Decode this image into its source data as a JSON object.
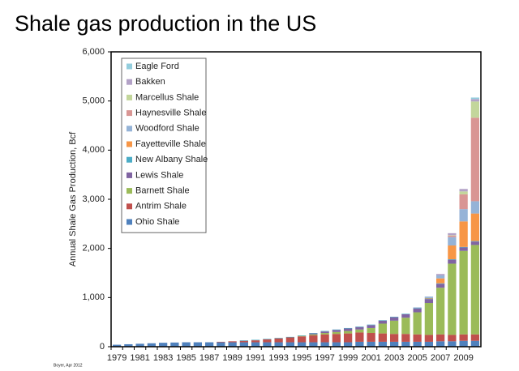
{
  "chart_data": {
    "type": "stacked_bar",
    "title": "Shale gas production in the US",
    "y_label": "Annual Shale Gas Production, Bcf",
    "source": "Boyer, Apr 2012",
    "categories": [
      "1979",
      null,
      "1981",
      null,
      "1983",
      null,
      "1985",
      null,
      "1987",
      null,
      "1989",
      null,
      "1991",
      null,
      "1993",
      null,
      "1995",
      null,
      "1997",
      null,
      "1999",
      null,
      "2001",
      null,
      "2003",
      null,
      "2005",
      null,
      "2007",
      null,
      "2009",
      null
    ],
    "ylim": [
      0,
      6000
    ],
    "yticks": [
      0,
      {
        "value": 1000,
        "label": "1,000"
      },
      {
        "value": 2000,
        "label": "2,000"
      },
      {
        "value": 3000,
        "label": "3,000"
      },
      {
        "value": 4000,
        "label": "4,000"
      },
      {
        "value": 5000,
        "label": "5,000"
      },
      {
        "value": 6000,
        "label": "6,000"
      }
    ],
    "grid": false,
    "legend": "top-left",
    "series": [
      {
        "name": "Ohio Shale",
        "color": "#4f81bd",
        "values": [
          40,
          50,
          60,
          70,
          80,
          85,
          90,
          90,
          90,
          90,
          90,
          90,
          90,
          90,
          90,
          90,
          90,
          90,
          90,
          90,
          90,
          100,
          100,
          100,
          100,
          100,
          100,
          100,
          110,
          110,
          120,
          120
        ]
      },
      {
        "name": "Antrim Shale",
        "color": "#c0504d",
        "values": [
          0,
          0,
          0,
          0,
          0,
          0,
          0,
          0,
          0,
          10,
          20,
          30,
          40,
          60,
          80,
          100,
          120,
          140,
          160,
          170,
          180,
          190,
          180,
          170,
          160,
          160,
          150,
          140,
          140,
          130,
          130,
          130
        ]
      },
      {
        "name": "Barnett Shale",
        "color": "#9bbb59",
        "values": [
          0,
          0,
          0,
          0,
          0,
          0,
          0,
          0,
          0,
          0,
          0,
          0,
          0,
          0,
          0,
          0,
          10,
          20,
          30,
          40,
          50,
          60,
          100,
          200,
          270,
          330,
          450,
          650,
          950,
          1450,
          1700,
          1820
        ]
      },
      {
        "name": "Lewis Shale",
        "color": "#8064a2",
        "values": [
          0,
          0,
          0,
          0,
          0,
          0,
          0,
          0,
          0,
          0,
          0,
          0,
          0,
          0,
          0,
          0,
          0,
          20,
          30,
          40,
          50,
          50,
          60,
          60,
          70,
          70,
          80,
          80,
          80,
          80,
          70,
          70
        ]
      },
      {
        "name": "New Albany Shale",
        "color": "#4bacc6",
        "values": [
          0,
          0,
          0,
          0,
          0,
          0,
          0,
          0,
          0,
          0,
          0,
          10,
          10,
          10,
          10,
          10,
          10,
          10,
          10,
          10,
          10,
          10,
          10,
          10,
          10,
          10,
          10,
          10,
          10,
          10,
          10,
          10
        ]
      },
      {
        "name": "Fayetteville Shale",
        "color": "#f79646",
        "values": [
          0,
          0,
          0,
          0,
          0,
          0,
          0,
          0,
          0,
          0,
          0,
          0,
          0,
          0,
          0,
          0,
          0,
          0,
          0,
          0,
          0,
          0,
          0,
          0,
          0,
          0,
          0,
          10,
          100,
          280,
          520,
          560
        ]
      },
      {
        "name": "Woodford Shale",
        "color": "#95b3d7",
        "values": [
          0,
          0,
          0,
          0,
          0,
          0,
          0,
          0,
          0,
          0,
          0,
          0,
          0,
          0,
          0,
          0,
          0,
          0,
          0,
          0,
          0,
          0,
          0,
          0,
          0,
          0,
          10,
          30,
          60,
          170,
          250,
          250
        ]
      },
      {
        "name": "Haynesville Shale",
        "color": "#d99694",
        "values": [
          0,
          0,
          0,
          0,
          0,
          0,
          0,
          0,
          0,
          0,
          0,
          0,
          0,
          0,
          0,
          0,
          0,
          0,
          0,
          0,
          0,
          0,
          0,
          0,
          0,
          0,
          0,
          0,
          0,
          30,
          300,
          1700
        ]
      },
      {
        "name": "Marcellus Shale",
        "color": "#c3d69b",
        "values": [
          0,
          0,
          0,
          0,
          0,
          0,
          0,
          0,
          0,
          0,
          0,
          0,
          0,
          0,
          0,
          0,
          0,
          0,
          0,
          0,
          0,
          0,
          0,
          0,
          0,
          0,
          0,
          0,
          0,
          10,
          60,
          330
        ]
      },
      {
        "name": "Bakken",
        "color": "#b3a2c7",
        "values": [
          0,
          0,
          0,
          0,
          0,
          0,
          0,
          0,
          0,
          0,
          0,
          0,
          0,
          0,
          0,
          0,
          0,
          0,
          0,
          0,
          0,
          0,
          0,
          0,
          0,
          0,
          0,
          0,
          30,
          40,
          50,
          50
        ]
      },
      {
        "name": "Eagle Ford",
        "color": "#93cddd",
        "values": [
          0,
          0,
          0,
          0,
          0,
          0,
          0,
          0,
          0,
          0,
          0,
          0,
          0,
          0,
          0,
          0,
          0,
          0,
          0,
          0,
          0,
          0,
          0,
          0,
          0,
          0,
          0,
          0,
          0,
          0,
          0,
          30
        ]
      }
    ]
  }
}
